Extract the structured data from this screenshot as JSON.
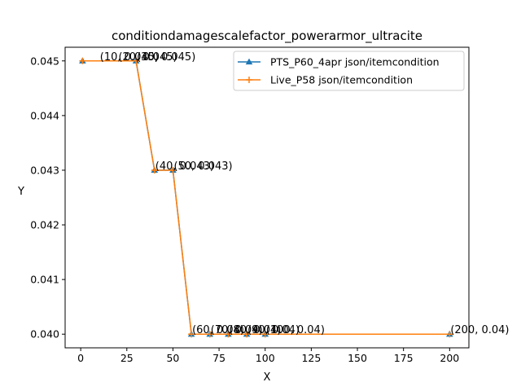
{
  "chart_data": {
    "type": "line",
    "title": "conditiondamagescalefactor_powerarmor_ultracite",
    "xlabel": "X",
    "ylabel": "Y",
    "xlim": [
      -8.45,
      210.45
    ],
    "ylim": [
      0.03975,
      0.04525
    ],
    "xticks": [
      0,
      25,
      50,
      75,
      100,
      125,
      150,
      175,
      200
    ],
    "xtick_labels": [
      "0",
      "25",
      "50",
      "75",
      "100",
      "125",
      "150",
      "175",
      "200"
    ],
    "yticks": [
      0.04,
      0.041,
      0.042,
      0.043,
      0.044,
      0.045
    ],
    "ytick_labels": [
      "0.040",
      "0.041",
      "0.042",
      "0.043",
      "0.044",
      "0.045"
    ],
    "grid": false,
    "legend_position": "top-right",
    "series": [
      {
        "name": "PTS_P60_4apr json/itemcondition",
        "color": "#1f77b4",
        "marker": "triangle-up",
        "x": [
          1,
          30,
          40,
          50,
          60,
          70,
          80,
          90,
          100,
          200
        ],
        "y": [
          0.045,
          0.045,
          0.043,
          0.043,
          0.04,
          0.04,
          0.04,
          0.04,
          0.04,
          0.04
        ]
      },
      {
        "name": "Live_P58 json/itemcondition",
        "color": "#ff7f0e",
        "marker": "plus",
        "x": [
          1,
          30,
          40,
          50,
          60,
          70,
          80,
          90,
          100,
          200
        ],
        "y": [
          0.045,
          0.045,
          0.043,
          0.043,
          0.04,
          0.04,
          0.04,
          0.04,
          0.04,
          0.04
        ]
      }
    ],
    "annotations": [
      {
        "text": "(10, 0.045)",
        "x": 10,
        "y": 0.045
      },
      {
        "text": "(20, 0.045)",
        "x": 20,
        "y": 0.045
      },
      {
        "text": "(30, 0.045)",
        "x": 30,
        "y": 0.045
      },
      {
        "text": "(40, 0.043)",
        "x": 40,
        "y": 0.043
      },
      {
        "text": "(50, 0.043)",
        "x": 50,
        "y": 0.043
      },
      {
        "text": "(60, 0.04)",
        "x": 60,
        "y": 0.04
      },
      {
        "text": "(70, 0.04)",
        "x": 70,
        "y": 0.04
      },
      {
        "text": "(80, 0.04)",
        "x": 80,
        "y": 0.04
      },
      {
        "text": "(90, 0.04)",
        "x": 90,
        "y": 0.04
      },
      {
        "text": "(100, 0.04)",
        "x": 100,
        "y": 0.04
      },
      {
        "text": "(200, 0.04)",
        "x": 200,
        "y": 0.04
      }
    ]
  }
}
